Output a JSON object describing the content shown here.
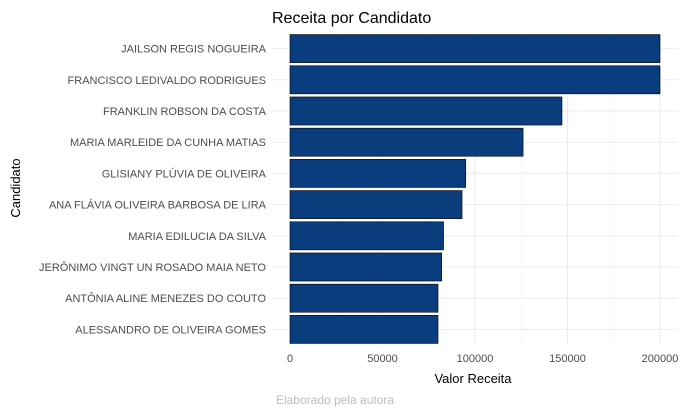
{
  "chart_data": {
    "type": "bar",
    "orientation": "horizontal",
    "title": "Receita por Candidato",
    "xlabel": "Valor Receita",
    "ylabel": "Candidato",
    "caption": "Elaborado pela autora",
    "categories": [
      "JAILSON REGIS NOGUEIRA",
      "FRANCISCO LEDIVALDO RODRIGUES",
      "FRANKLIN ROBSON DA COSTA",
      "MARIA MARLEIDE DA CUNHA MATIAS",
      "GLISIANY PLÚVIA DE OLIVEIRA",
      "ANA FLÁVIA OLIVEIRA BARBOSA DE LIRA",
      "MARIA EDILUCIA DA SILVA",
      "JERÔNIMO VINGT UN ROSADO MAIA NETO",
      "ANTÔNIA ALINE MENEZES DO COUTO",
      "ALESSANDRO DE OLIVEIRA GOMES"
    ],
    "values": [
      200000,
      200000,
      147000,
      126000,
      95000,
      93000,
      83000,
      82000,
      80000,
      80000
    ],
    "xlim": [
      0,
      210000
    ],
    "xticks": [
      0,
      50000,
      100000,
      150000,
      200000
    ],
    "xtick_labels": [
      "0",
      "50000",
      "100000",
      "150000",
      "200000"
    ],
    "grid": true,
    "bar_color": "#0a3d7e"
  }
}
